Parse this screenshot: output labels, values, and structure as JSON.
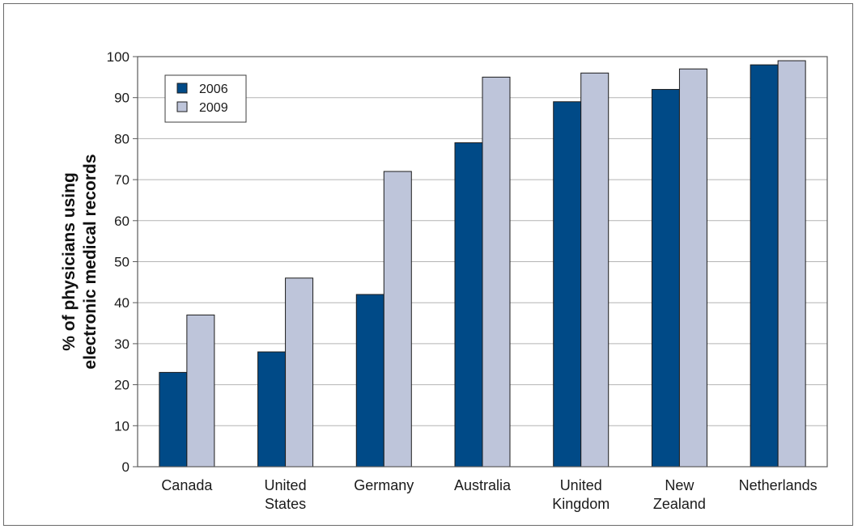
{
  "chart_data": {
    "type": "bar",
    "categories": [
      [
        "Canada"
      ],
      [
        "United",
        "States"
      ],
      [
        "Germany"
      ],
      [
        "Australia"
      ],
      [
        "United",
        "Kingdom"
      ],
      [
        "New",
        "Zealand"
      ],
      [
        "Netherlands"
      ]
    ],
    "series": [
      {
        "name": "2006",
        "color": "#004a87",
        "values": [
          23,
          28,
          42,
          79,
          89,
          92,
          98
        ]
      },
      {
        "name": "2009",
        "color": "#bec5da",
        "values": [
          37,
          46,
          72,
          95,
          96,
          97,
          99
        ]
      }
    ],
    "ylabel": [
      "% of physicians using",
      "electronic medical records"
    ],
    "ylim": [
      0,
      100
    ],
    "yticks": [
      0,
      10,
      20,
      30,
      40,
      50,
      60,
      70,
      80,
      90,
      100
    ],
    "grid": true,
    "legend_position": "top-left"
  }
}
